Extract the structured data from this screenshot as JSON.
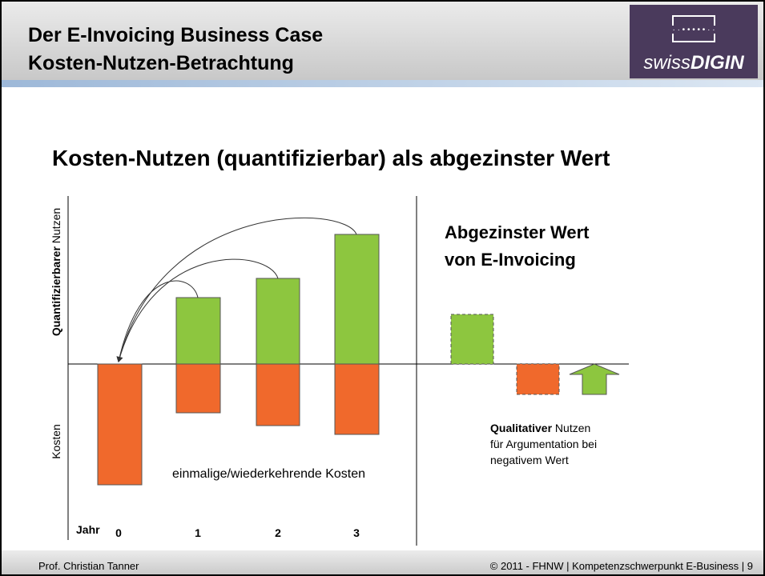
{
  "header": {
    "title_line1": "Der E-Invoicing Business Case",
    "title_line2": "Kosten-Nutzen-Betrachtung",
    "logo": {
      "prefix": "swiss",
      "suffix": "DIGIN"
    }
  },
  "subtitle": "Kosten-Nutzen (quantifizierbar) als abgezinster Wert",
  "diagram": {
    "y_axis_upper": {
      "bold": "Quantifizierbarer",
      "rest": " Nutzen"
    },
    "y_axis_lower": "Kosten",
    "x_axis_label": "Jahr",
    "years": [
      "0",
      "1",
      "2",
      "3"
    ],
    "cost_note": "einmalige/wiederkehrende Kosten",
    "right_title_line1": "Abgezinster Wert",
    "right_title_line2": "von E-Invoicing",
    "qualitative": {
      "bold": "Qualitativer",
      "rest": " Nutzen",
      "line2": "für Argumentation bei",
      "line3": "negativem Wert"
    }
  },
  "footer": {
    "left": "Prof. Christian Tanner",
    "right": "© 2011 - FHNW | Kompetenzschwerpunkt E-Business | 9"
  }
}
